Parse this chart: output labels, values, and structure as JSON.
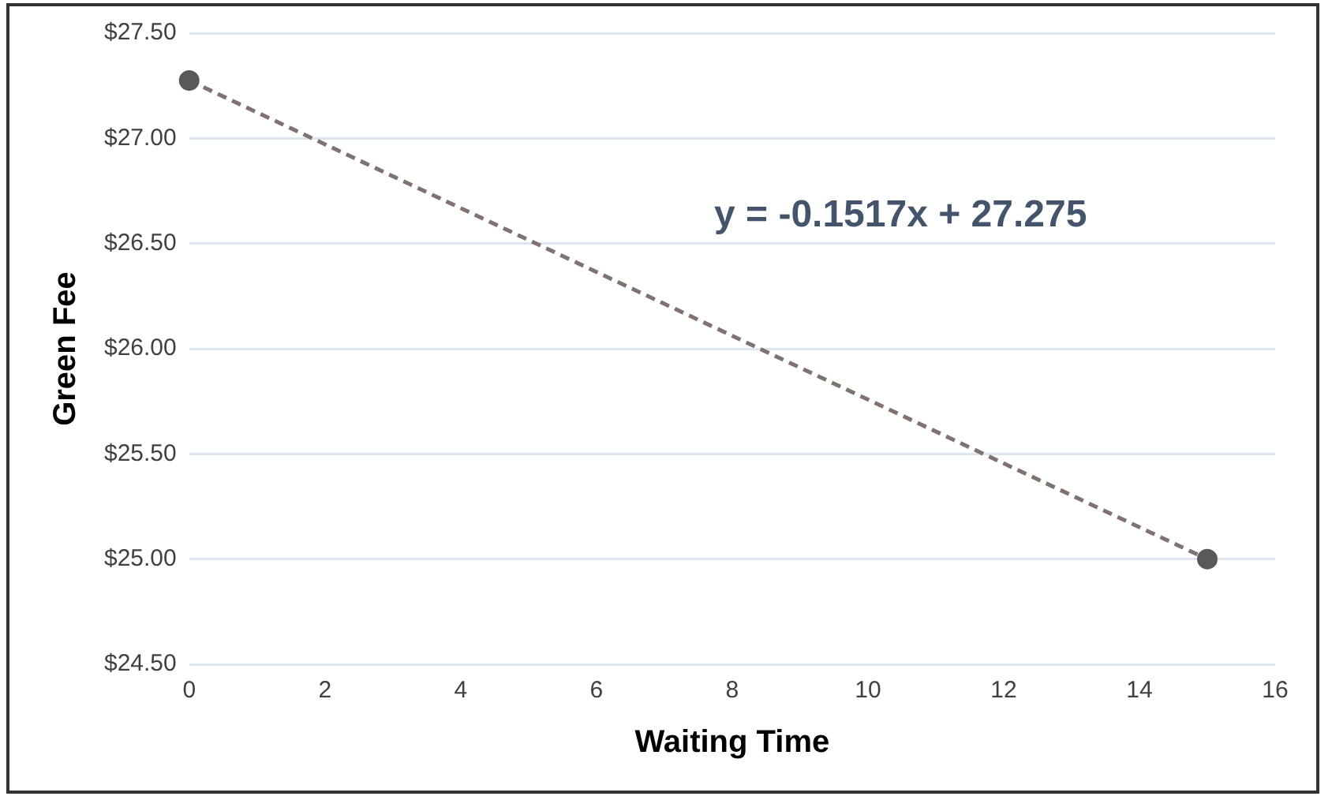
{
  "chart_data": {
    "type": "scatter",
    "xlabel": "Waiting Time",
    "ylabel": "Green Fee",
    "xlim": [
      0,
      16
    ],
    "xticks": [
      0,
      2,
      4,
      6,
      8,
      10,
      12,
      14,
      16
    ],
    "ylim": [
      24.5,
      27.5
    ],
    "yticks": [
      {
        "value": 24.5,
        "label": "$24.50"
      },
      {
        "value": 25,
        "label": "$25.00"
      },
      {
        "value": 25.5,
        "label": "$25.50"
      },
      {
        "value": 26,
        "label": "$26.00"
      },
      {
        "value": 26.5,
        "label": "$26.50"
      },
      {
        "value": 27,
        "label": "$27.00"
      },
      {
        "value": 27.5,
        "label": "$27.50"
      }
    ],
    "grid": "y",
    "legend": false,
    "x": [
      0,
      15
    ],
    "series": [
      {
        "type": "scatter",
        "color": "#595959",
        "marker": "circle",
        "values": [
          27.275,
          25.0
        ]
      },
      {
        "type": "line",
        "color": "#7f7270",
        "line_style": "dashed",
        "marker": "none",
        "values": [
          27.275,
          25.0
        ]
      }
    ],
    "annotations": [
      "y = -0.1517x + 27.275"
    ]
  }
}
